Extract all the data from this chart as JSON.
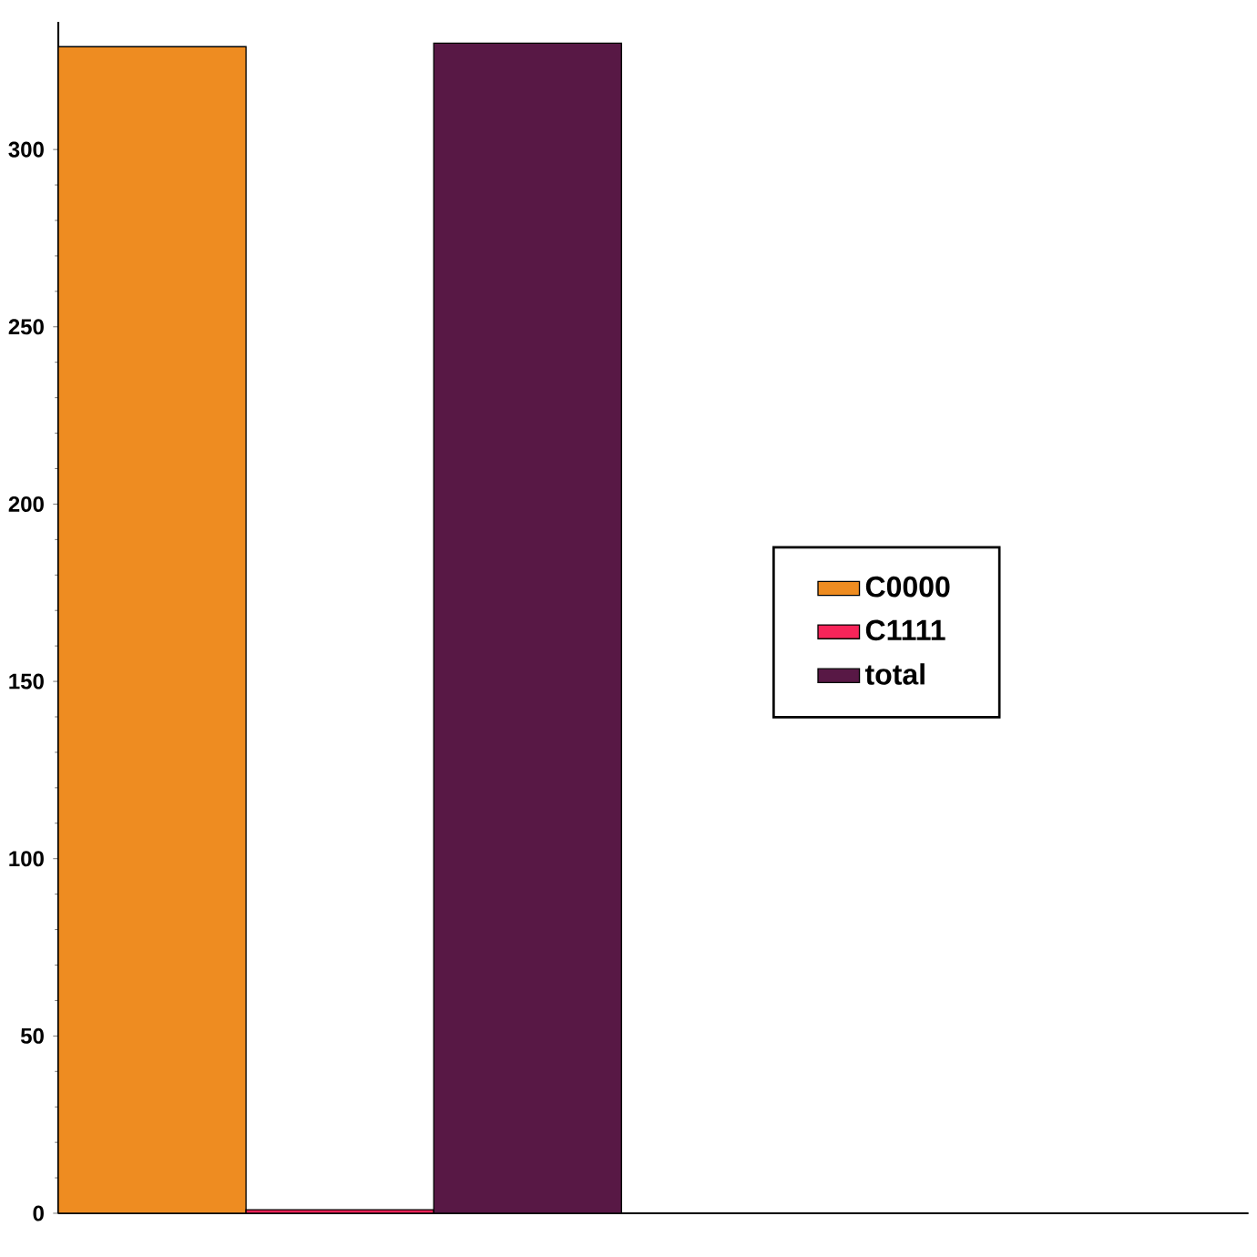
{
  "chart_data": {
    "type": "bar",
    "categories": [
      null
    ],
    "series": [
      {
        "name": "C0000",
        "color": "#ee8c21",
        "values": [
          329
        ]
      },
      {
        "name": "C1111",
        "color": "#f72459",
        "values": [
          1
        ]
      },
      {
        "name": "total",
        "color": "#581845",
        "values": [
          330
        ]
      }
    ],
    "ylim": [
      0,
      336
    ],
    "yticks": [
      0,
      50,
      100,
      150,
      200,
      250,
      300
    ],
    "grid": false,
    "legend": "right"
  }
}
